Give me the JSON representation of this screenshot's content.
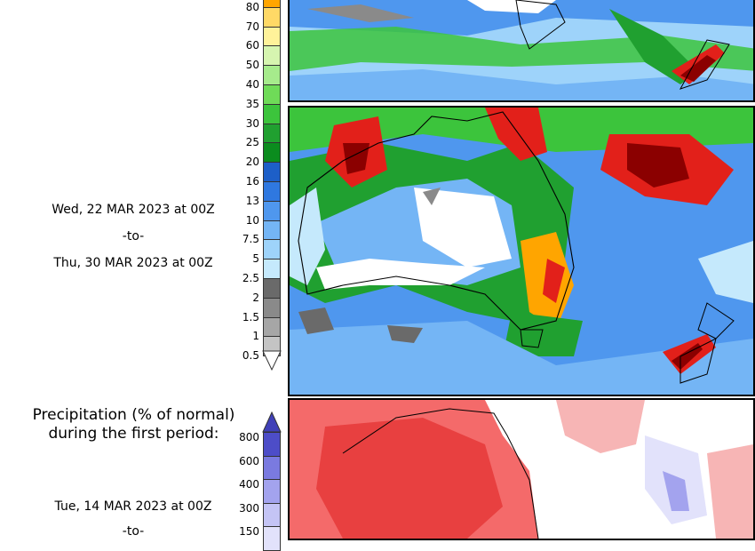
{
  "period": {
    "from": "Wed, 22 MAR 2023 at 00Z",
    "sep": "-to-",
    "to": "Thu, 30 MAR 2023 at 00Z"
  },
  "anomaly": {
    "title_line1": "Precipitation (% of normal)",
    "title_line2": "during the first period:",
    "from": "Tue, 14 MAR 2023 at 00Z",
    "sep": "-to-"
  },
  "precip_scale": {
    "labels": [
      "80",
      "70",
      "60",
      "50",
      "40",
      "35",
      "30",
      "25",
      "20",
      "16",
      "13",
      "10",
      "7.5",
      "5",
      "2.5",
      "2",
      "1.5",
      "1",
      "0.5"
    ],
    "colors": [
      "#ffa500",
      "#ffd966",
      "#fff29a",
      "#d6f5b0",
      "#a6eb8c",
      "#6fdb58",
      "#3cc43c",
      "#20a030",
      "#0b8c1e",
      "#1d5fc8",
      "#2f78e0",
      "#4f97ee",
      "#74b5f5",
      "#9ed3fa",
      "#c5e9fc",
      "#6a6a6a",
      "#8a8a8a",
      "#a6a6a6",
      "#c4c4c4"
    ]
  },
  "anomaly_scale": {
    "labels": [
      "800",
      "600",
      "400",
      "300",
      "150"
    ],
    "colors": [
      "#4d4dc8",
      "#7a7ae0",
      "#a3a3ee",
      "#c4c4f5",
      "#e2e2fb"
    ]
  }
}
